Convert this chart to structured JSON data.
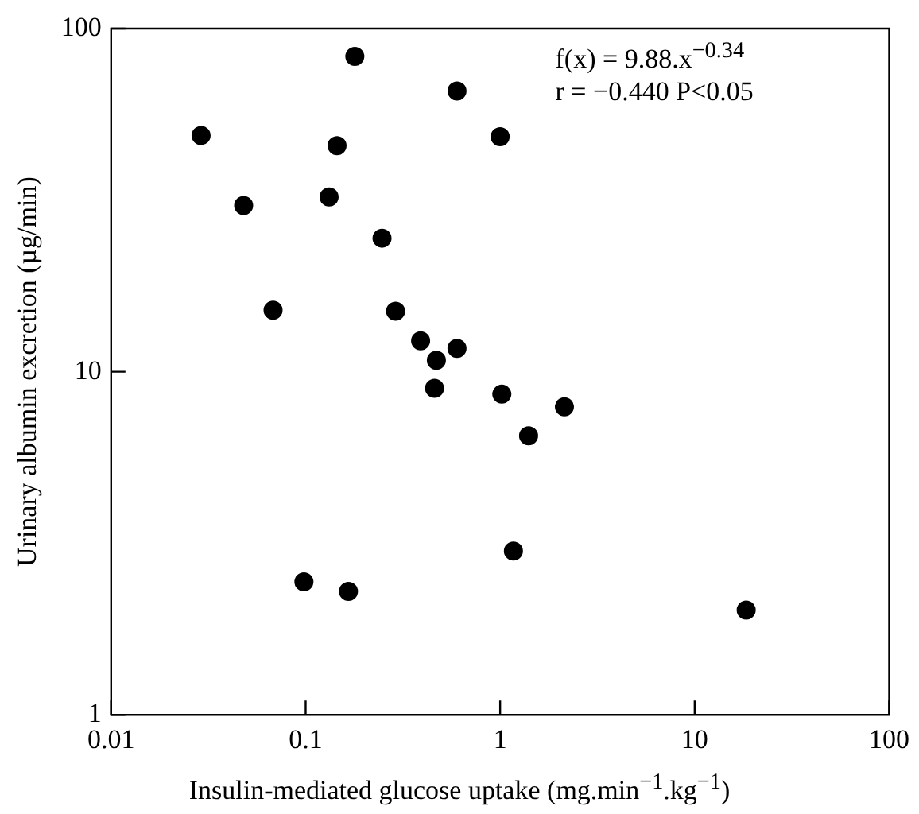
{
  "chart_data": {
    "type": "scatter",
    "xlabel": "Insulin-mediated glucose uptake (mg.min$^{−1}$.kg$^{−1}$)",
    "ylabel": "Urinary albumin excretion (µg/min)",
    "annotations": [
      "f(x) = 9.88.x$^{−0.34}$",
      "r = −0.440  P<0.05"
    ],
    "log": "xy",
    "xlim": [
      0.01,
      100
    ],
    "ylim": [
      1,
      100
    ],
    "xticks": [
      0.01,
      0.1,
      1,
      10,
      100
    ],
    "yticks": [
      1,
      10,
      100
    ],
    "grid": false,
    "legend": false,
    "marker": "circle",
    "series": [
      {
        "color": "#000000",
        "x": [
          0.179,
          0.6,
          0.029,
          0.145,
          1.0,
          0.048,
          0.132,
          0.247,
          0.068,
          0.29,
          0.39,
          0.6,
          0.47,
          0.46,
          1.02,
          2.14,
          1.4,
          1.17,
          0.098,
          0.166,
          18.4
        ],
        "values": [
          83,
          65.8,
          48.8,
          45.6,
          48.4,
          30.5,
          32.3,
          24.5,
          15.1,
          15,
          12.3,
          11.7,
          10.8,
          8.95,
          8.6,
          7.9,
          6.5,
          3.0,
          2.44,
          2.29,
          2.02
        ]
      }
    ]
  }
}
